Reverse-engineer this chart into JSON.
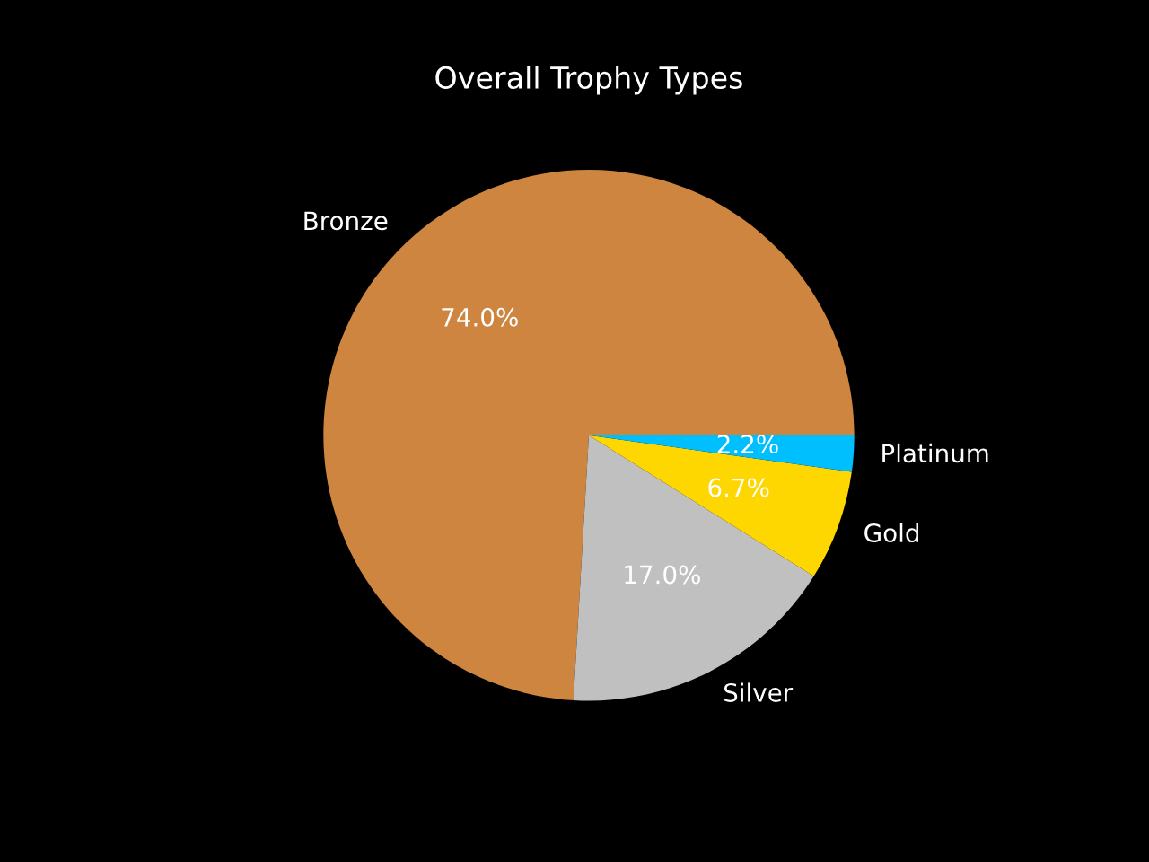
{
  "chart_data": {
    "type": "pie",
    "title": "Overall Trophy Types",
    "categories": [
      "Bronze",
      "Silver",
      "Gold",
      "Platinum"
    ],
    "values": [
      74.0,
      17.0,
      6.7,
      2.2
    ],
    "value_labels": [
      "74.0%",
      "17.0%",
      "6.7%",
      "2.2%"
    ],
    "colors": [
      "#cd853f",
      "#c0c0c0",
      "#ffd700",
      "#00bfff"
    ],
    "legend": false
  }
}
